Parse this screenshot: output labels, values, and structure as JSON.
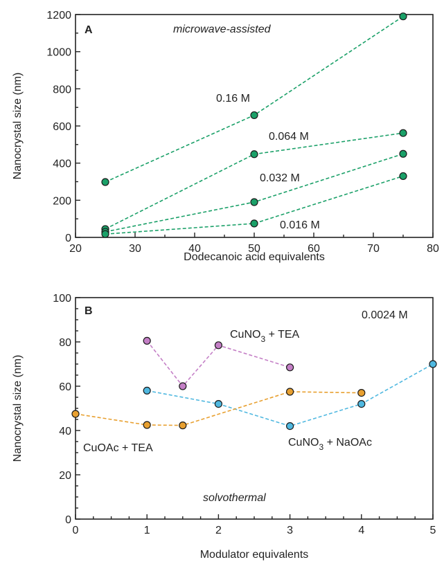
{
  "chart_data": [
    {
      "type": "line",
      "panel_label": "A",
      "annotation": "microwave-assisted",
      "xlabel": "Dodecanoic acid equivalents",
      "ylabel": "Nanocrystal size (nm)",
      "xlim": [
        20,
        80
      ],
      "ylim": [
        0,
        1200
      ],
      "xticks": [
        20,
        30,
        40,
        50,
        60,
        70,
        80
      ],
      "yticks": [
        0,
        200,
        400,
        600,
        800,
        1000,
        1200
      ],
      "series": [
        {
          "name": "0.16 M",
          "color": "#1aa068",
          "x": [
            25,
            50,
            75
          ],
          "y": [
            298,
            658,
            1190
          ]
        },
        {
          "name": "0.064 M",
          "color": "#1aa068",
          "x": [
            25,
            50,
            75
          ],
          "y": [
            45,
            448,
            562
          ]
        },
        {
          "name": "0.032 M",
          "color": "#1aa068",
          "x": [
            25,
            50,
            75
          ],
          "y": [
            30,
            190,
            450
          ]
        },
        {
          "name": "0.016 M",
          "color": "#1aa068",
          "x": [
            25,
            50,
            75
          ],
          "y": [
            18,
            75,
            330
          ]
        }
      ]
    },
    {
      "type": "line",
      "panel_label": "B",
      "annotation": "solvothermal",
      "concentration_label": "0.0024 M",
      "xlabel": "Modulator equivalents",
      "ylabel": "Nanocrystal size (nm)",
      "xlim": [
        0,
        5
      ],
      "ylim": [
        0,
        100
      ],
      "xticks": [
        0,
        1,
        2,
        3,
        4,
        5
      ],
      "yticks": [
        0,
        20,
        40,
        60,
        80,
        100
      ],
      "series": [
        {
          "name_main": "CuNO",
          "name_sub": "3",
          "name_rest": " + TEA",
          "color": "#c47fc6",
          "x": [
            1,
            1.5,
            2,
            3
          ],
          "y": [
            80.5,
            60,
            78.5,
            68.5
          ]
        },
        {
          "name_main": "CuNO",
          "name_sub": "3",
          "name_rest": " + NaOAc",
          "color": "#4fb8e0",
          "x": [
            1,
            2,
            3,
            4,
            5
          ],
          "y": [
            58,
            52,
            42,
            52,
            70
          ]
        },
        {
          "name": "CuOAc + TEA",
          "color": "#e8a030",
          "x": [
            0,
            1,
            1.5,
            3,
            4
          ],
          "y": [
            47.5,
            42.5,
            42.3,
            57.5,
            57
          ]
        }
      ]
    }
  ]
}
